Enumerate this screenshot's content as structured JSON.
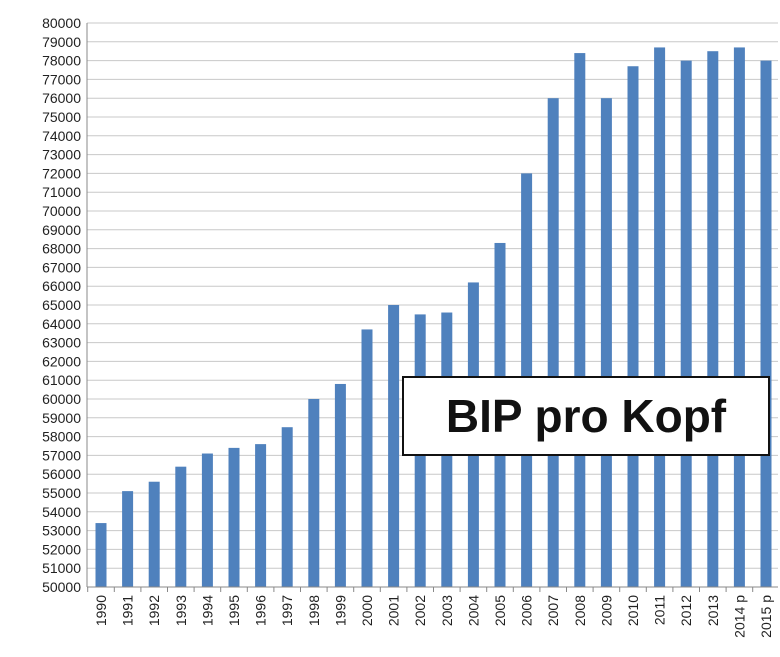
{
  "chart_data": {
    "type": "bar",
    "title": "",
    "xlabel": "",
    "ylabel": "",
    "categories": [
      "1990",
      "1991",
      "1992",
      "1993",
      "1994",
      "1995",
      "1996",
      "1997",
      "1998",
      "1999",
      "2000",
      "2001",
      "2002",
      "2003",
      "2004",
      "2005",
      "2006",
      "2007",
      "2008",
      "2009",
      "2010",
      "2011",
      "2012",
      "2013",
      "2014 p",
      "2015 p"
    ],
    "values": [
      53400,
      55100,
      55600,
      56400,
      57100,
      57400,
      57600,
      58500,
      60000,
      60800,
      63700,
      65000,
      64500,
      64600,
      66200,
      68300,
      72000,
      76000,
      78400,
      76000,
      77700,
      78700,
      78000,
      78500,
      78700,
      78000
    ],
    "ylim": [
      50000,
      80000
    ],
    "ytick_step": 1000,
    "grid": true,
    "legend": "none",
    "bar_color": "#4f81bd",
    "grid_color": "#c8c8c8",
    "annotation": "BIP pro Kopf"
  }
}
